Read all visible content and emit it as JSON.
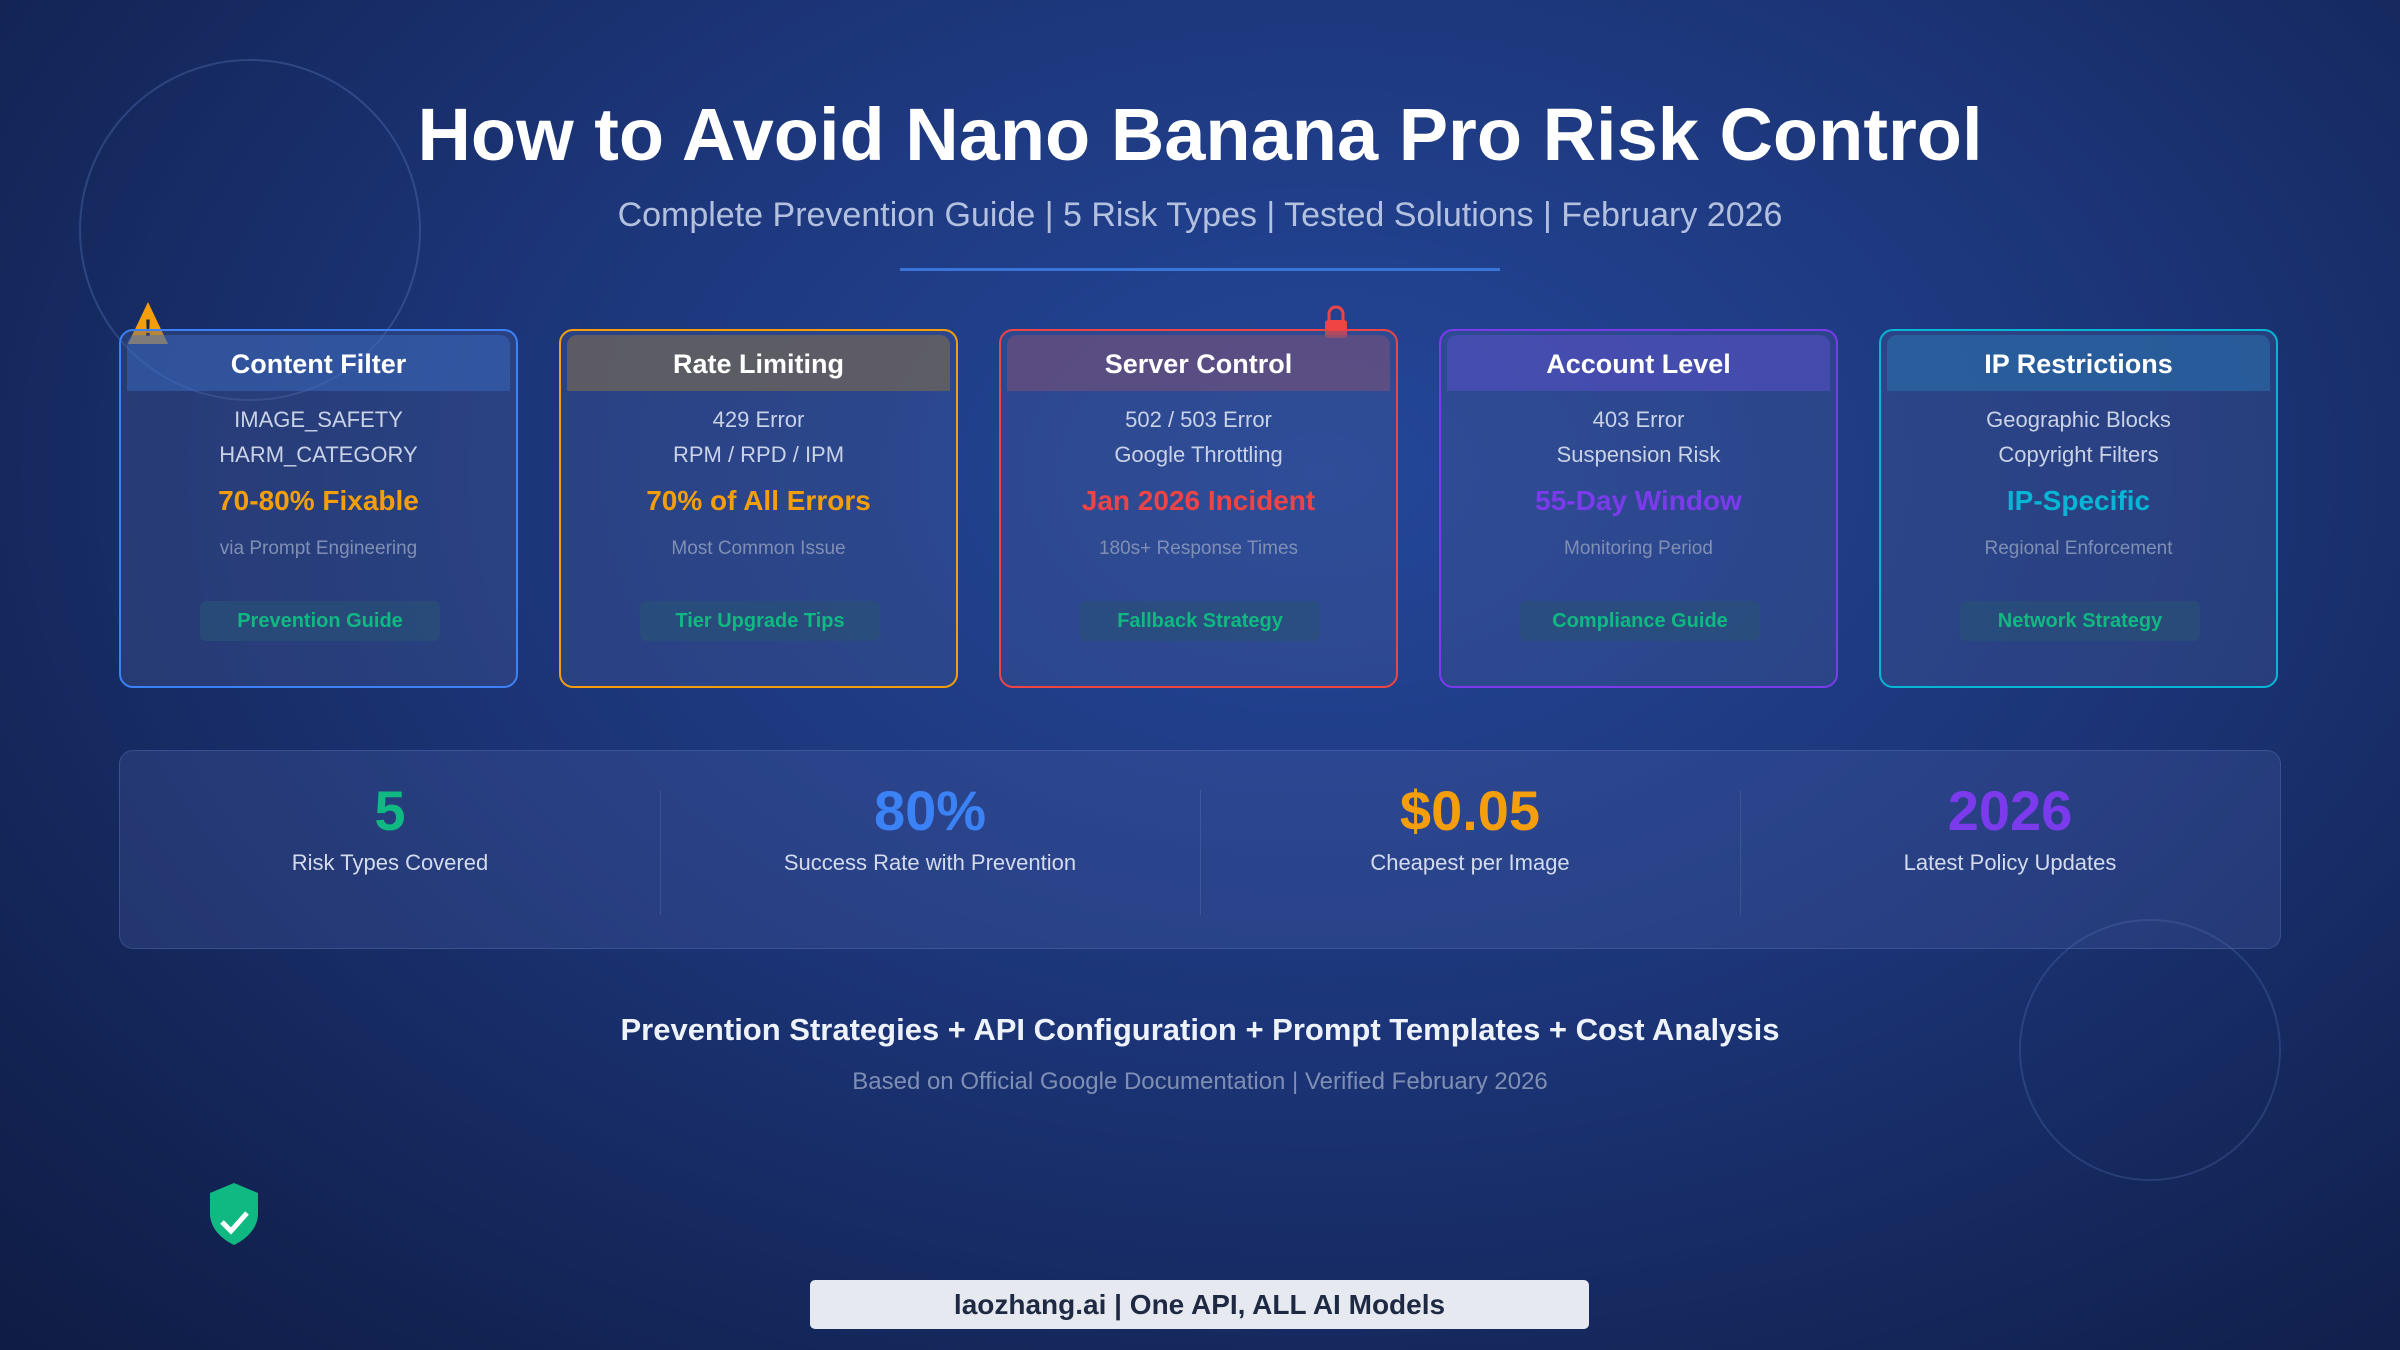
{
  "header": {
    "title": "How to Avoid Nano Banana Pro Risk Control",
    "subtitle": "Complete Prevention Guide | 5 Risk Types | Tested Solutions | February 2026"
  },
  "cards": [
    {
      "title": "Content Filter",
      "lines": [
        "IMAGE_SAFETY",
        "HARM_CATEGORY"
      ],
      "highlight": "70-80% Fixable",
      "note": "via Prompt Engineering",
      "button": "Prevention Guide"
    },
    {
      "title": "Rate Limiting",
      "lines": [
        "429 Error",
        "RPM / RPD / IPM"
      ],
      "highlight": "70% of All Errors",
      "note": "Most Common Issue",
      "button": "Tier Upgrade Tips"
    },
    {
      "title": "Server Control",
      "lines": [
        "502 / 503 Error",
        "Google Throttling"
      ],
      "highlight": "Jan 2026 Incident",
      "note": "180s+ Response Times",
      "button": "Fallback Strategy"
    },
    {
      "title": "Account Level",
      "lines": [
        "403 Error",
        "Suspension Risk"
      ],
      "highlight": "55-Day Window",
      "note": "Monitoring Period",
      "button": "Compliance Guide"
    },
    {
      "title": "IP Restrictions",
      "lines": [
        "Geographic Blocks",
        "Copyright Filters"
      ],
      "highlight": "IP-Specific",
      "note": "Regional Enforcement",
      "button": "Network Strategy"
    }
  ],
  "stats": [
    {
      "value": "5",
      "label": "Risk Types Covered"
    },
    {
      "value": "80%",
      "label": "Success Rate with Prevention"
    },
    {
      "value": "$0.05",
      "label": "Cheapest per Image"
    },
    {
      "value": "2026",
      "label": "Latest Policy Updates"
    }
  ],
  "footer": {
    "headline": "Prevention Strategies + API Configuration + Prompt Templates + Cost Analysis",
    "note": "Based on Official Google Documentation | Verified February 2026"
  },
  "brand": "laozhang.ai | One API, ALL AI Models"
}
